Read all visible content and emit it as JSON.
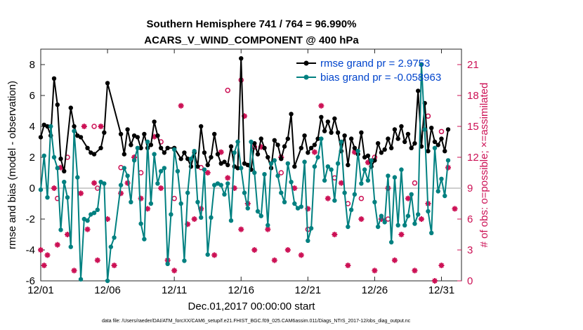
{
  "chart_data": {
    "type": "line",
    "title_line1": "Southern Hemisphere 741 / 764 = 96.990%",
    "title_line2": "ACARS_V_WIND_COMPONENT @ 400 hPa",
    "xlabel": "Dec.01,2017 00:00:00 start",
    "ylabel": "rmse and bias (model - observation)",
    "y2label": "# of obs: o=possible; ×=assimilated",
    "footnote": "data file: /Users/raeder/DAI/ATM_forcXX/CAM6_setup/f.e21.FHIST_BGC.f09_025.CAM6assim.011/Diags_NTrS_2017-12/obs_diag_output.nc",
    "xlim": [
      0,
      31.5
    ],
    "ylim": [
      -6,
      9
    ],
    "y2lim": [
      0,
      22.5
    ],
    "xticks": [
      0,
      5,
      10,
      15,
      20,
      25,
      30
    ],
    "xtick_labels": [
      "12/01",
      "12/06",
      "12/11",
      "12/16",
      "12/21",
      "12/26",
      "12/31"
    ],
    "yticks": [
      -6,
      -4,
      -2,
      0,
      2,
      4,
      6,
      8
    ],
    "y2ticks": [
      0,
      3,
      6,
      9,
      12,
      15,
      18,
      21
    ],
    "zero_line": 0,
    "colors": {
      "rmse": "#000000",
      "bias": "#008080",
      "obs": "#cc1155",
      "legend_text": "#0044cc"
    },
    "legend": [
      {
        "name": "rmse grand pr = 2.9753",
        "color": "#000000"
      },
      {
        "name": "bias grand pr = -0.058963",
        "color": "#008080"
      }
    ],
    "rmse": [
      [
        0,
        3.3
      ],
      [
        0.25,
        4.1
      ],
      [
        0.5,
        4
      ],
      [
        0.75,
        3.4
      ],
      [
        1,
        7.1
      ],
      [
        1.25,
        5.4
      ],
      [
        1.5,
        1.9
      ],
      [
        1.75,
        1.1
      ],
      [
        2.25,
        5.2
      ],
      [
        2.5,
        4
      ],
      [
        2.75,
        3.4
      ],
      [
        3,
        3.3
      ],
      [
        3.5,
        2.6
      ],
      [
        3.75,
        2.3
      ],
      [
        4,
        2.2
      ],
      [
        4.5,
        2.6
      ],
      [
        4.75,
        3.6
      ],
      [
        5,
        6.8
      ],
      [
        6,
        3.5
      ],
      [
        6.25,
        2.2
      ],
      [
        6.5,
        3.8
      ],
      [
        6.75,
        2.8
      ],
      [
        7,
        3.4
      ],
      [
        7.25,
        3.3
      ],
      [
        7.5,
        2.6
      ],
      [
        7.75,
        3.5
      ],
      [
        8,
        2.6
      ],
      [
        8.25,
        2.8
      ],
      [
        8.5,
        4.3
      ],
      [
        8.75,
        3.4
      ],
      [
        9,
        2.6
      ],
      [
        9.25,
        2.3
      ],
      [
        9.5,
        2.6
      ],
      [
        10,
        2.6
      ],
      [
        10.5,
        1.9
      ],
      [
        10.75,
        2.3
      ],
      [
        11,
        1.9
      ],
      [
        11.25,
        1.4
      ],
      [
        11.5,
        2.3
      ],
      [
        11.75,
        1.4
      ],
      [
        12,
        4
      ],
      [
        12.25,
        2.3
      ],
      [
        12.5,
        1.5
      ],
      [
        12.75,
        2
      ],
      [
        13,
        3.5
      ],
      [
        13.25,
        2.2
      ],
      [
        13.5,
        1.6
      ],
      [
        13.75,
        1.7
      ],
      [
        14,
        1.5
      ],
      [
        14.25,
        2.7
      ],
      [
        14.5,
        1.4
      ],
      [
        14.75,
        1.3
      ],
      [
        15,
        8.4
      ],
      [
        15.25,
        1.6
      ],
      [
        15.5,
        1.5
      ],
      [
        15.75,
        1.2
      ],
      [
        16,
        2.9
      ],
      [
        16.25,
        2.2
      ],
      [
        16.5,
        3.2
      ],
      [
        16.75,
        2.6
      ],
      [
        17,
        2
      ],
      [
        17.25,
        1.3
      ],
      [
        17.5,
        3.1
      ],
      [
        17.75,
        2.8
      ],
      [
        18,
        1.9
      ],
      [
        18.25,
        2.7
      ],
      [
        18.5,
        3.2
      ],
      [
        18.75,
        4.8
      ],
      [
        19,
        1.4
      ],
      [
        19.5,
        2.6
      ],
      [
        19.75,
        3.4
      ],
      [
        20,
        2.3
      ],
      [
        20.25,
        2.6
      ],
      [
        20.5,
        2.8
      ],
      [
        20.75,
        3.2
      ],
      [
        21,
        4.6
      ],
      [
        21.25,
        3.7
      ],
      [
        21.5,
        4.3
      ],
      [
        21.75,
        3.6
      ],
      [
        22,
        4.5
      ],
      [
        22.25,
        3.6
      ],
      [
        22.5,
        2.4
      ],
      [
        22.75,
        3.4
      ],
      [
        23,
        1.5
      ],
      [
        23.25,
        3.2
      ],
      [
        23.5,
        2.6
      ],
      [
        23.75,
        2.2
      ],
      [
        24,
        3.6
      ],
      [
        24.25,
        2
      ],
      [
        24.5,
        2.1
      ],
      [
        24.75,
        1.4
      ],
      [
        25,
        1.8
      ],
      [
        25.25,
        2.9
      ],
      [
        25.5,
        2.3
      ],
      [
        25.75,
        2.5
      ],
      [
        26,
        3.2
      ],
      [
        26.25,
        2.6
      ],
      [
        26.5,
        3.8
      ],
      [
        26.75,
        3.2
      ],
      [
        27,
        4
      ],
      [
        27.25,
        3
      ],
      [
        27.5,
        3.5
      ],
      [
        27.75,
        2.6
      ],
      [
        28,
        2.9
      ],
      [
        28.25,
        6.3
      ],
      [
        28.5,
        2.7
      ],
      [
        28.75,
        5.5
      ],
      [
        29,
        2.4
      ],
      [
        29.25,
        3.9
      ],
      [
        29.5,
        3
      ],
      [
        29.75,
        2.8
      ],
      [
        30,
        3.2
      ],
      [
        30.25,
        2.4
      ],
      [
        30.5,
        3.8
      ]
    ],
    "bias": [
      [
        0,
        -0.1
      ],
      [
        0.25,
        2.1
      ],
      [
        0.5,
        -0.6
      ],
      [
        0.75,
        4
      ],
      [
        1,
        2
      ],
      [
        1.25,
        1.3
      ],
      [
        1.5,
        -2.7
      ],
      [
        1.75,
        0.4
      ],
      [
        2,
        -0.6
      ],
      [
        2.25,
        -3.8
      ],
      [
        2.5,
        3.7
      ],
      [
        2.75,
        0.7
      ],
      [
        3,
        -5.9
      ],
      [
        3.25,
        -2
      ],
      [
        3.5,
        -2.1
      ],
      [
        3.75,
        -1.7
      ],
      [
        4,
        -1.6
      ],
      [
        4.25,
        -1.4
      ],
      [
        4.5,
        0.4
      ],
      [
        4.75,
        0.3
      ],
      [
        5,
        -6
      ],
      [
        5.25,
        -3.8
      ],
      [
        5.5,
        -3.2
      ],
      [
        6,
        0.2
      ],
      [
        6.25,
        1.3
      ],
      [
        6.5,
        0.8
      ],
      [
        6.75,
        -0.9
      ],
      [
        7,
        1.8
      ],
      [
        7.25,
        2.6
      ],
      [
        7.5,
        -2.3
      ],
      [
        7.75,
        -3.3
      ],
      [
        8,
        3
      ],
      [
        8.25,
        -1
      ],
      [
        8.5,
        2.2
      ],
      [
        8.75,
        0.3
      ],
      [
        9,
        1.1
      ],
      [
        9.25,
        1.3
      ],
      [
        9.5,
        -4.9
      ],
      [
        9.75,
        -1.7
      ],
      [
        10,
        2.5
      ],
      [
        10.25,
        1.1
      ],
      [
        10.5,
        -1
      ],
      [
        10.75,
        -4.7
      ],
      [
        11,
        -0.3
      ],
      [
        11.25,
        1.9
      ],
      [
        11.5,
        2.4
      ],
      [
        11.75,
        -0.9
      ],
      [
        12,
        -1.9
      ],
      [
        12.25,
        1.2
      ],
      [
        12.5,
        -4.3
      ],
      [
        12.75,
        -1.9
      ],
      [
        13,
        0.2
      ],
      [
        13.25,
        0.3
      ],
      [
        13.5,
        0.2
      ],
      [
        13.75,
        -0.4
      ],
      [
        14,
        0.3
      ],
      [
        14.25,
        -2.1
      ],
      [
        14.5,
        2.3
      ],
      [
        14.75,
        3
      ],
      [
        15,
        1.3
      ],
      [
        15.25,
        -0.3
      ],
      [
        15.5,
        -1.3
      ],
      [
        15.75,
        3
      ],
      [
        16,
        1
      ],
      [
        16.25,
        -1.5
      ],
      [
        16.5,
        -1.8
      ],
      [
        16.75,
        0.9
      ],
      [
        17,
        -2.4
      ],
      [
        17.25,
        1.6
      ],
      [
        17.5,
        1.8
      ],
      [
        17.75,
        0.8
      ],
      [
        18,
        -0.3
      ],
      [
        18.25,
        -0.9
      ],
      [
        18.5,
        1.6
      ],
      [
        18.75,
        0.4
      ],
      [
        19,
        -1
      ],
      [
        19.25,
        -1.3
      ],
      [
        19.5,
        -1.2
      ],
      [
        19.75,
        1.7
      ],
      [
        20,
        -3.4
      ],
      [
        20.25,
        -2.6
      ],
      [
        20.5,
        1.4
      ],
      [
        20.75,
        2
      ],
      [
        21,
        3.2
      ],
      [
        21.25,
        0.5
      ],
      [
        21.5,
        1.4
      ],
      [
        21.75,
        1.2
      ],
      [
        22,
        -0.8
      ],
      [
        22.25,
        1.6
      ],
      [
        22.5,
        3
      ],
      [
        22.75,
        -0.3
      ],
      [
        23,
        -2.5
      ],
      [
        23.25,
        -1.4
      ],
      [
        23.5,
        -0.4
      ],
      [
        23.75,
        2.4
      ],
      [
        24,
        0.3
      ],
      [
        24.25,
        1.2
      ],
      [
        24.5,
        0.5
      ],
      [
        24.75,
        1.8
      ],
      [
        25,
        -0.9
      ],
      [
        25.25,
        -2.5
      ],
      [
        25.5,
        -1.8
      ],
      [
        25.75,
        -2.2
      ],
      [
        26,
        0.8
      ],
      [
        26.25,
        -3.5
      ],
      [
        26.5,
        0.7
      ],
      [
        26.75,
        -2.4
      ],
      [
        27,
        1.2
      ],
      [
        27.25,
        -2.4
      ],
      [
        27.5,
        -1.8
      ],
      [
        27.75,
        -0.4
      ],
      [
        28,
        -2.3
      ],
      [
        28.25,
        -1.7
      ],
      [
        28.5,
        8
      ],
      [
        28.75,
        3.8
      ],
      [
        29,
        -1.5
      ],
      [
        29.25,
        -2.9
      ],
      [
        29.5,
        2.6
      ],
      [
        29.75,
        -0.2
      ],
      [
        30,
        0.6
      ],
      [
        30.25,
        -0.5
      ],
      [
        30.5,
        1.8
      ]
    ],
    "obs_assimilated": [
      [
        0,
        3
      ],
      [
        0.25,
        1.5
      ],
      [
        0.5,
        2.5
      ],
      [
        1,
        9
      ],
      [
        1.25,
        3.5
      ],
      [
        1.5,
        11
      ],
      [
        2,
        4.5
      ],
      [
        2.5,
        1
      ],
      [
        3,
        8.5
      ],
      [
        3.25,
        15
      ],
      [
        3.5,
        5
      ],
      [
        4,
        9.5
      ],
      [
        4.25,
        2
      ],
      [
        4.5,
        15
      ],
      [
        5,
        6
      ],
      [
        5.5,
        1.5
      ],
      [
        6,
        8.5
      ],
      [
        6.5,
        9.5
      ],
      [
        7,
        12
      ],
      [
        7.5,
        8
      ],
      [
        8,
        7
      ],
      [
        8.5,
        14
      ],
      [
        9,
        9
      ],
      [
        9.5,
        2
      ],
      [
        10,
        1
      ],
      [
        10.5,
        17
      ],
      [
        11,
        5.5
      ],
      [
        11.5,
        6
      ],
      [
        12,
        7
      ],
      [
        12.5,
        10.5
      ],
      [
        13,
        2.5
      ],
      [
        13.5,
        12.5
      ],
      [
        14,
        10
      ],
      [
        14.5,
        9
      ],
      [
        15,
        5
      ],
      [
        15.25,
        16
      ],
      [
        15.5,
        7.5
      ],
      [
        16,
        3
      ],
      [
        16.5,
        13
      ],
      [
        17,
        5
      ],
      [
        17.5,
        2
      ],
      [
        18,
        12
      ],
      [
        18.5,
        3
      ],
      [
        19,
        9
      ],
      [
        19.5,
        2.5
      ],
      [
        20,
        7
      ],
      [
        20.5,
        12.5
      ],
      [
        21,
        17
      ],
      [
        21.5,
        8
      ],
      [
        22,
        4.5
      ],
      [
        22.5,
        9.5
      ],
      [
        23,
        1.5
      ],
      [
        23.5,
        12.5
      ],
      [
        24,
        6
      ],
      [
        24.5,
        11.5
      ],
      [
        25,
        1
      ],
      [
        25.5,
        6
      ],
      [
        26,
        9
      ],
      [
        26.5,
        2
      ],
      [
        27,
        4.5
      ],
      [
        27.5,
        8
      ],
      [
        28,
        1
      ],
      [
        28.5,
        6
      ],
      [
        29,
        7.5
      ],
      [
        29.5,
        0
      ],
      [
        30,
        1.5
      ],
      [
        30.5,
        11
      ],
      [
        31,
        7
      ]
    ],
    "obs_possible": [
      [
        1.25,
        8
      ],
      [
        2,
        12
      ],
      [
        4,
        15
      ],
      [
        4.25,
        9
      ],
      [
        6,
        11
      ],
      [
        7.5,
        10.5
      ],
      [
        9,
        13.5
      ],
      [
        10,
        8
      ],
      [
        12,
        11
      ],
      [
        14,
        18.5
      ],
      [
        15,
        19.5
      ],
      [
        16,
        13
      ],
      [
        18,
        10.5
      ],
      [
        20,
        5
      ],
      [
        22,
        10
      ],
      [
        23,
        7.5
      ],
      [
        24,
        8
      ],
      [
        25,
        12
      ],
      [
        26,
        6
      ],
      [
        28,
        9.5
      ],
      [
        29,
        16
      ],
      [
        30,
        14.5
      ]
    ]
  }
}
